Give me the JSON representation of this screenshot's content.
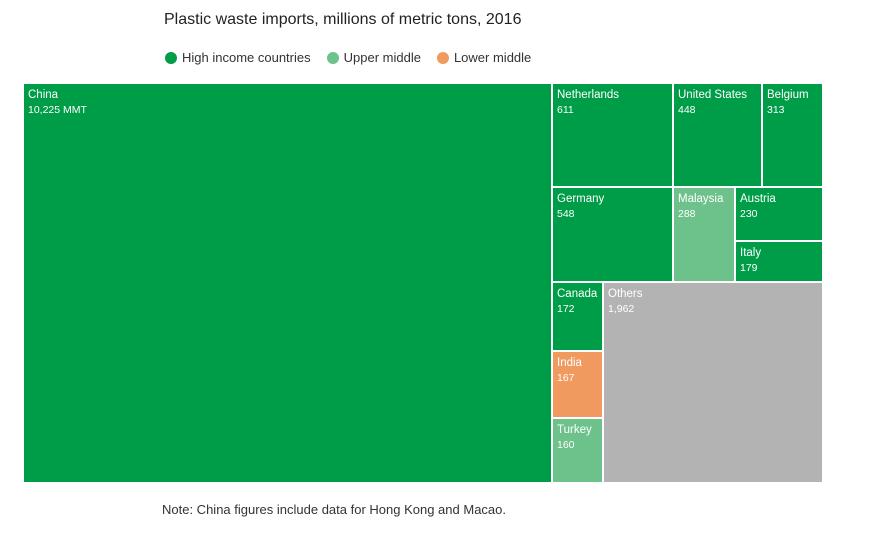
{
  "chart_data": {
    "type": "treemap",
    "title": "Plastic waste imports, millions of metric tons, 2016",
    "legend": {
      "placement": "top-left",
      "items": [
        {
          "key": "high",
          "label": "High income countries",
          "color": "#009d48"
        },
        {
          "key": "upper",
          "label": "Upper middle",
          "color": "#6cc28a"
        },
        {
          "key": "lower",
          "label": "Lower middle",
          "color": "#f09a5f"
        }
      ]
    },
    "others_color": "#b3b3b3",
    "items": [
      {
        "name": "China",
        "label": "10,225 MMT",
        "value": 10225,
        "group": "high"
      },
      {
        "name": "Netherlands",
        "label": "611",
        "value": 611,
        "group": "high"
      },
      {
        "name": "United States",
        "label": "448",
        "value": 448,
        "group": "high"
      },
      {
        "name": "Belgium",
        "label": "313",
        "value": 313,
        "group": "high"
      },
      {
        "name": "Germany",
        "label": "548",
        "value": 548,
        "group": "high"
      },
      {
        "name": "Malaysia",
        "label": "288",
        "value": 288,
        "group": "upper"
      },
      {
        "name": "Austria",
        "label": "230",
        "value": 230,
        "group": "high"
      },
      {
        "name": "Italy",
        "label": "179",
        "value": 179,
        "group": "high"
      },
      {
        "name": "Canada",
        "label": "172",
        "value": 172,
        "group": "high"
      },
      {
        "name": "India",
        "label": "167",
        "value": 167,
        "group": "lower"
      },
      {
        "name": "Turkey",
        "label": "160",
        "value": 160,
        "group": "upper"
      },
      {
        "name": "Others",
        "label": "1,962",
        "value": 1962,
        "group": "others"
      }
    ],
    "note": "Note: China figures include data for Hong Kong and Macao."
  }
}
